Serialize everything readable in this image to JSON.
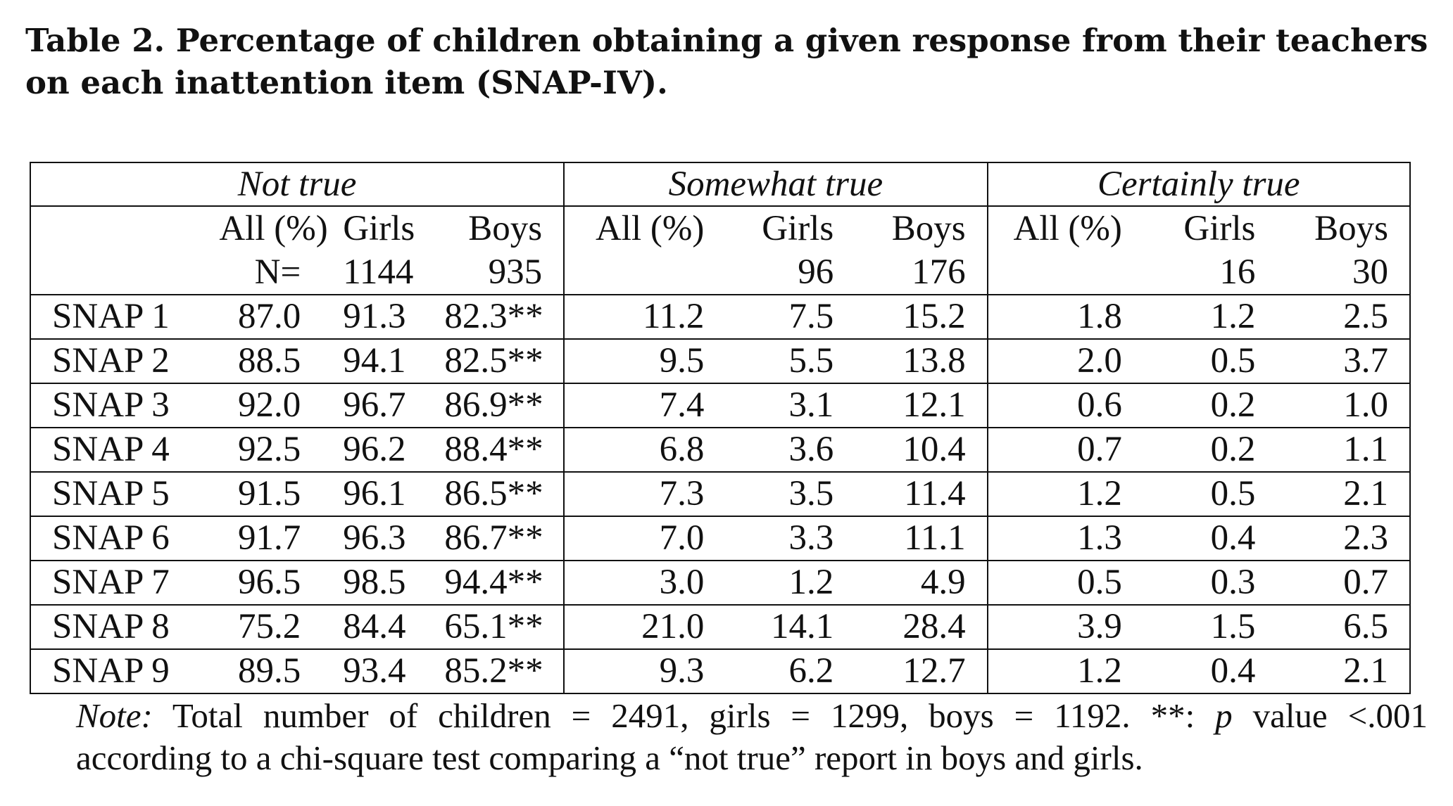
{
  "caption": {
    "line1": "Table 2. Percentage of children obtaining a given response from their teachers",
    "line2": "on each inattention item (SNAP-IV)."
  },
  "table": {
    "groups": [
      "Not true",
      "Somewhat true",
      "Certainly true"
    ],
    "subheaders": [
      "All (%)",
      "Girls",
      "Boys",
      "All (%)",
      "Girls",
      "Boys",
      "All (%)",
      "Girls",
      "Boys"
    ],
    "counts": {
      "n_label": "N=",
      "not_true_girls": "1144",
      "not_true_boys": "935",
      "somewhat_girls": "96",
      "somewhat_boys": "176",
      "certainly_girls": "16",
      "certainly_boys": "30"
    },
    "rows": [
      {
        "label": "SNAP 1",
        "cells": [
          "87.0",
          "91.3",
          "82.3**",
          "11.2",
          "7.5",
          "15.2",
          "1.8",
          "1.2",
          "2.5"
        ]
      },
      {
        "label": "SNAP 2",
        "cells": [
          "88.5",
          "94.1",
          "82.5**",
          "9.5",
          "5.5",
          "13.8",
          "2.0",
          "0.5",
          "3.7"
        ]
      },
      {
        "label": "SNAP 3",
        "cells": [
          "92.0",
          "96.7",
          "86.9**",
          "7.4",
          "3.1",
          "12.1",
          "0.6",
          "0.2",
          "1.0"
        ]
      },
      {
        "label": "SNAP 4",
        "cells": [
          "92.5",
          "96.2",
          "88.4**",
          "6.8",
          "3.6",
          "10.4",
          "0.7",
          "0.2",
          "1.1"
        ]
      },
      {
        "label": "SNAP 5",
        "cells": [
          "91.5",
          "96.1",
          "86.5**",
          "7.3",
          "3.5",
          "11.4",
          "1.2",
          "0.5",
          "2.1"
        ]
      },
      {
        "label": "SNAP 6",
        "cells": [
          "91.7",
          "96.3",
          "86.7**",
          "7.0",
          "3.3",
          "11.1",
          "1.3",
          "0.4",
          "2.3"
        ]
      },
      {
        "label": "SNAP 7",
        "cells": [
          "96.5",
          "98.5",
          "94.4**",
          "3.0",
          "1.2",
          "4.9",
          "0.5",
          "0.3",
          "0.7"
        ]
      },
      {
        "label": "SNAP 8",
        "cells": [
          "75.2",
          "84.4",
          "65.1**",
          "21.0",
          "14.1",
          "28.4",
          "3.9",
          "1.5",
          "6.5"
        ]
      },
      {
        "label": "SNAP 9",
        "cells": [
          "89.5",
          "93.4",
          "85.2**",
          "9.3",
          "6.2",
          "12.7",
          "1.2",
          "0.4",
          "2.1"
        ]
      }
    ]
  },
  "note": {
    "label": "Note:",
    "line1_text": " Total number of children = 2491, girls = 1299, boys = 1192. **: ",
    "p": "p",
    "line1_tail": " value <.001",
    "line2": "according to a chi-square test comparing a “not true” report in boys and girls."
  }
}
